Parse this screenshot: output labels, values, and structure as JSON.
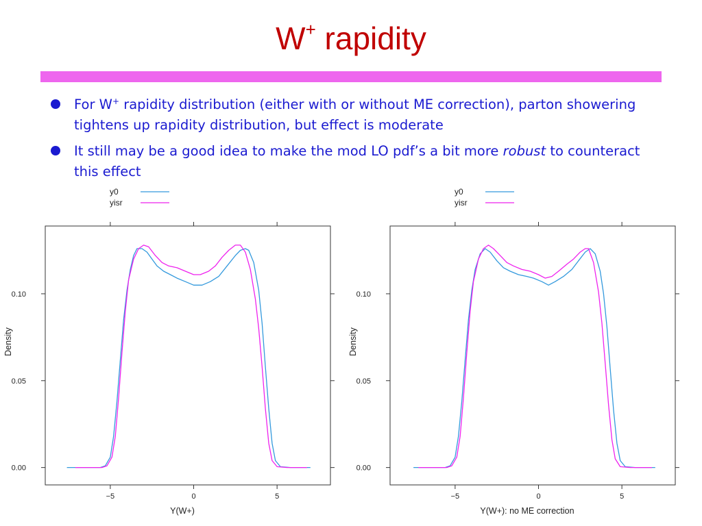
{
  "slide": {
    "title_main": "W",
    "title_sup": "+",
    "title_rest": " rapidity",
    "bullets": [
      {
        "p1": "For W",
        "sup": "+",
        "p2": " rapidity distribution (either with or without ME correction), parton showering tightens up rapidity distribution, but effect is moderate"
      },
      {
        "p1": "It still may be a good idea to make the mod LO pdf’s a bit more ",
        "em": "robust",
        "p2": " to counteract this effect"
      }
    ]
  },
  "colors": {
    "title": "#c00000",
    "rule_bar": "#ee66ee",
    "text": "#1a1ad0",
    "y0": "#3399dd",
    "yisr": "#ee22ee"
  },
  "chart_data": [
    {
      "type": "line",
      "xlabel": "Y(W+)",
      "ylabel": "Density",
      "xlim": [
        -8.9,
        8.2
      ],
      "ylim": [
        -0.01,
        0.139
      ],
      "x_ticks": [
        -5,
        0,
        5
      ],
      "y_ticks": [
        0.0,
        0.05,
        0.1
      ],
      "y_tick_labels": [
        "0.00",
        "0.05",
        "0.10"
      ],
      "legend": "top-center",
      "series": [
        {
          "name": "y0",
          "color": "#3399dd",
          "points": [
            [
              -7.6,
              0
            ],
            [
              -5.6,
              0
            ],
            [
              -5.3,
              0.001
            ],
            [
              -5.0,
              0.006
            ],
            [
              -4.8,
              0.018
            ],
            [
              -4.6,
              0.038
            ],
            [
              -4.4,
              0.062
            ],
            [
              -4.2,
              0.085
            ],
            [
              -4.0,
              0.102
            ],
            [
              -3.8,
              0.114
            ],
            [
              -3.6,
              0.122
            ],
            [
              -3.4,
              0.126
            ],
            [
              -3.1,
              0.126
            ],
            [
              -2.8,
              0.124
            ],
            [
              -2.5,
              0.12
            ],
            [
              -2.2,
              0.116
            ],
            [
              -1.8,
              0.113
            ],
            [
              -1.4,
              0.111
            ],
            [
              -1.0,
              0.109
            ],
            [
              -0.5,
              0.107
            ],
            [
              0,
              0.105
            ],
            [
              0.5,
              0.105
            ],
            [
              1.0,
              0.107
            ],
            [
              1.5,
              0.11
            ],
            [
              2.0,
              0.116
            ],
            [
              2.5,
              0.122
            ],
            [
              2.8,
              0.125
            ],
            [
              3.1,
              0.126
            ],
            [
              3.3,
              0.125
            ],
            [
              3.6,
              0.118
            ],
            [
              3.9,
              0.102
            ],
            [
              4.1,
              0.083
            ],
            [
              4.3,
              0.058
            ],
            [
              4.5,
              0.034
            ],
            [
              4.7,
              0.014
            ],
            [
              4.9,
              0.004
            ],
            [
              5.2,
              0.0005
            ],
            [
              5.8,
              0
            ],
            [
              7.0,
              0
            ]
          ]
        },
        {
          "name": "yisr",
          "color": "#ee22ee",
          "points": [
            [
              -7.1,
              0
            ],
            [
              -5.5,
              0
            ],
            [
              -5.2,
              0.001
            ],
            [
              -4.9,
              0.006
            ],
            [
              -4.7,
              0.018
            ],
            [
              -4.5,
              0.04
            ],
            [
              -4.3,
              0.066
            ],
            [
              -4.1,
              0.09
            ],
            [
              -3.9,
              0.108
            ],
            [
              -3.6,
              0.12
            ],
            [
              -3.3,
              0.126
            ],
            [
              -3.0,
              0.128
            ],
            [
              -2.7,
              0.127
            ],
            [
              -2.3,
              0.122
            ],
            [
              -1.9,
              0.118
            ],
            [
              -1.5,
              0.116
            ],
            [
              -1.0,
              0.115
            ],
            [
              -0.5,
              0.113
            ],
            [
              0,
              0.111
            ],
            [
              0.4,
              0.111
            ],
            [
              0.9,
              0.113
            ],
            [
              1.3,
              0.116
            ],
            [
              1.7,
              0.121
            ],
            [
              2.1,
              0.125
            ],
            [
              2.5,
              0.128
            ],
            [
              2.8,
              0.128
            ],
            [
              3.1,
              0.124
            ],
            [
              3.4,
              0.114
            ],
            [
              3.7,
              0.097
            ],
            [
              3.9,
              0.08
            ],
            [
              4.1,
              0.058
            ],
            [
              4.3,
              0.034
            ],
            [
              4.5,
              0.014
            ],
            [
              4.7,
              0.004
            ],
            [
              5.0,
              0.0005
            ],
            [
              5.6,
              0
            ],
            [
              6.8,
              0
            ]
          ]
        }
      ]
    },
    {
      "type": "line",
      "xlabel": "Y(W+): no ME correction",
      "ylabel": "Density",
      "xlim": [
        -8.9,
        8.2
      ],
      "ylim": [
        -0.01,
        0.139
      ],
      "x_ticks": [
        -5,
        0,
        5
      ],
      "y_ticks": [
        0.0,
        0.05,
        0.1
      ],
      "y_tick_labels": [
        "0.00",
        "0.05",
        "0.10"
      ],
      "legend": "top-center",
      "series": [
        {
          "name": "y0",
          "color": "#3399dd",
          "points": [
            [
              -7.5,
              0
            ],
            [
              -5.6,
              0
            ],
            [
              -5.3,
              0.001
            ],
            [
              -5.0,
              0.006
            ],
            [
              -4.8,
              0.018
            ],
            [
              -4.6,
              0.038
            ],
            [
              -4.4,
              0.062
            ],
            [
              -4.2,
              0.085
            ],
            [
              -4.0,
              0.102
            ],
            [
              -3.8,
              0.114
            ],
            [
              -3.5,
              0.123
            ],
            [
              -3.2,
              0.126
            ],
            [
              -2.9,
              0.124
            ],
            [
              -2.5,
              0.119
            ],
            [
              -2.1,
              0.115
            ],
            [
              -1.7,
              0.113
            ],
            [
              -1.2,
              0.111
            ],
            [
              -0.7,
              0.11
            ],
            [
              -0.3,
              0.109
            ],
            [
              0.2,
              0.107
            ],
            [
              0.6,
              0.105
            ],
            [
              1.0,
              0.107
            ],
            [
              1.5,
              0.11
            ],
            [
              2.0,
              0.114
            ],
            [
              2.4,
              0.119
            ],
            [
              2.8,
              0.124
            ],
            [
              3.1,
              0.126
            ],
            [
              3.4,
              0.123
            ],
            [
              3.7,
              0.113
            ],
            [
              3.9,
              0.1
            ],
            [
              4.1,
              0.081
            ],
            [
              4.3,
              0.057
            ],
            [
              4.5,
              0.033
            ],
            [
              4.7,
              0.014
            ],
            [
              4.9,
              0.004
            ],
            [
              5.2,
              0.0005
            ],
            [
              5.8,
              0
            ],
            [
              7.0,
              0
            ]
          ]
        },
        {
          "name": "yisr",
          "color": "#ee22ee",
          "points": [
            [
              -7.2,
              0
            ],
            [
              -5.5,
              0
            ],
            [
              -5.2,
              0.001
            ],
            [
              -4.9,
              0.006
            ],
            [
              -4.7,
              0.018
            ],
            [
              -4.5,
              0.04
            ],
            [
              -4.3,
              0.066
            ],
            [
              -4.1,
              0.09
            ],
            [
              -3.9,
              0.107
            ],
            [
              -3.6,
              0.12
            ],
            [
              -3.3,
              0.126
            ],
            [
              -3.0,
              0.128
            ],
            [
              -2.7,
              0.126
            ],
            [
              -2.3,
              0.122
            ],
            [
              -1.9,
              0.118
            ],
            [
              -1.5,
              0.116
            ],
            [
              -1.0,
              0.114
            ],
            [
              -0.5,
              0.113
            ],
            [
              0,
              0.111
            ],
            [
              0.4,
              0.109
            ],
            [
              0.8,
              0.11
            ],
            [
              1.2,
              0.113
            ],
            [
              1.7,
              0.117
            ],
            [
              2.1,
              0.12
            ],
            [
              2.5,
              0.124
            ],
            [
              2.8,
              0.126
            ],
            [
              3.0,
              0.126
            ],
            [
              3.3,
              0.118
            ],
            [
              3.6,
              0.101
            ],
            [
              3.8,
              0.083
            ],
            [
              4.0,
              0.06
            ],
            [
              4.2,
              0.036
            ],
            [
              4.4,
              0.016
            ],
            [
              4.6,
              0.005
            ],
            [
              4.9,
              0.0005
            ],
            [
              5.5,
              0
            ],
            [
              6.8,
              0
            ]
          ]
        }
      ]
    }
  ]
}
